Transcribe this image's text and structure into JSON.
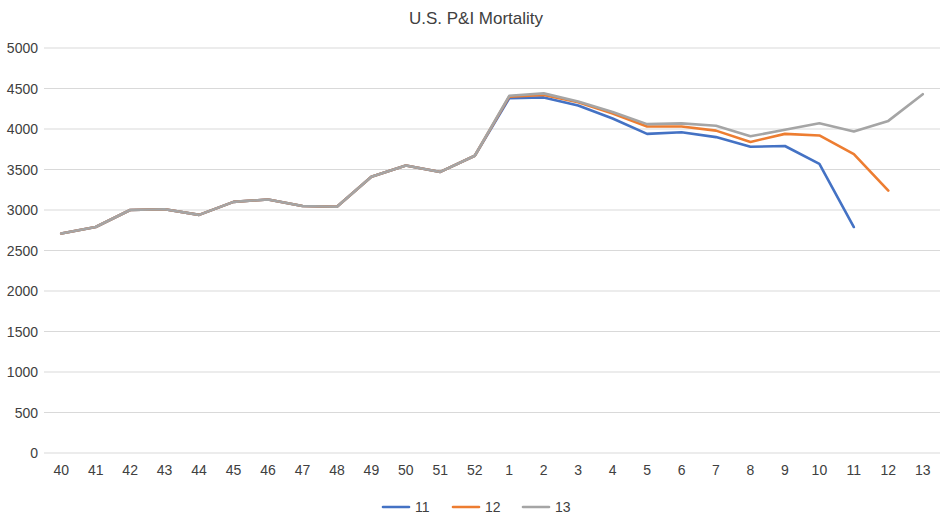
{
  "chart_data": {
    "type": "line",
    "title": "U.S. P&I Mortality",
    "categories": [
      "40",
      "41",
      "42",
      "43",
      "44",
      "45",
      "46",
      "47",
      "48",
      "49",
      "50",
      "51",
      "52",
      "1",
      "2",
      "3",
      "4",
      "5",
      "6",
      "7",
      "8",
      "9",
      "10",
      "11",
      "12",
      "13"
    ],
    "series": [
      {
        "name": "11",
        "color": "#4472c4",
        "values": [
          2710,
          2790,
          3000,
          3010,
          2940,
          3100,
          3130,
          3050,
          3040,
          3410,
          3550,
          3470,
          3670,
          4380,
          4390,
          4290,
          4130,
          3940,
          3960,
          3900,
          3780,
          3790,
          3570,
          2790,
          null,
          null
        ]
      },
      {
        "name": "12",
        "color": "#ed7d31",
        "values": [
          2710,
          2790,
          3000,
          3010,
          2940,
          3100,
          3130,
          3050,
          3040,
          3410,
          3550,
          3470,
          3670,
          4400,
          4420,
          4330,
          4190,
          4030,
          4030,
          3980,
          3840,
          3940,
          3920,
          3690,
          3240,
          null
        ]
      },
      {
        "name": "13",
        "color": "#a5a5a5",
        "values": [
          2710,
          2790,
          3000,
          3010,
          2940,
          3100,
          3130,
          3050,
          3040,
          3410,
          3550,
          3470,
          3670,
          4410,
          4440,
          4340,
          4210,
          4060,
          4070,
          4040,
          3910,
          3990,
          4070,
          3970,
          4100,
          4430
        ]
      }
    ],
    "ylim": [
      0,
      5000
    ],
    "yticks": [
      0,
      500,
      1000,
      1500,
      2000,
      2500,
      3000,
      3500,
      4000,
      4500,
      5000
    ],
    "grid": true,
    "legend": "bottom"
  }
}
